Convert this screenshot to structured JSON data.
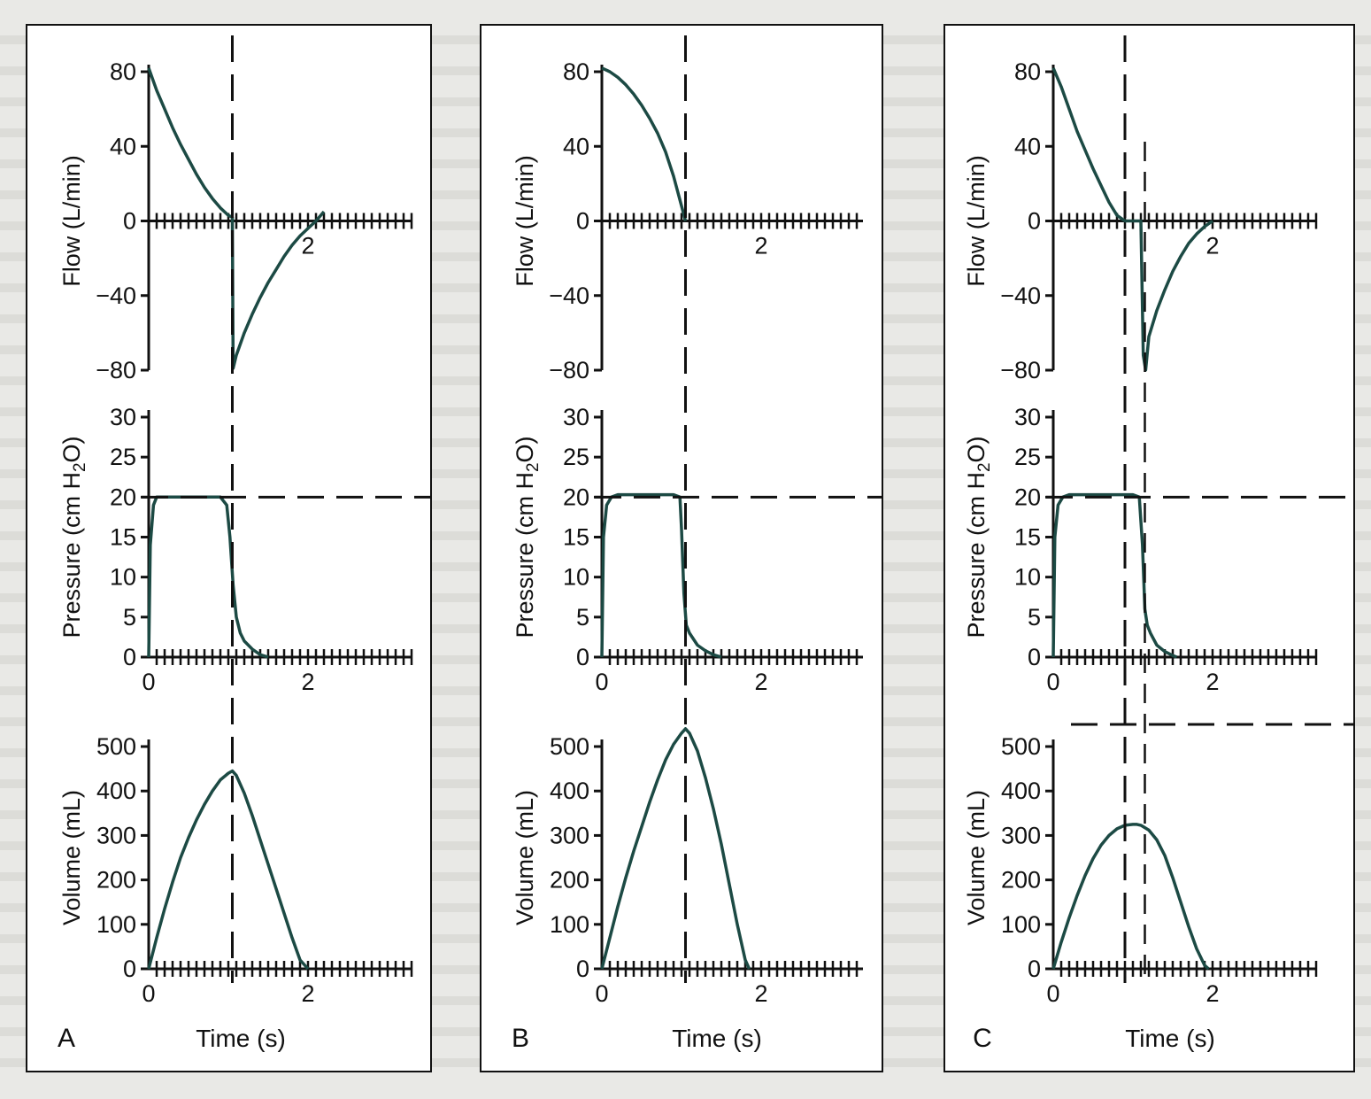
{
  "colors": {
    "ink": "#111111",
    "curve": "#1c4a44",
    "background": "#e9e9e6",
    "panel": "#ffffff"
  },
  "labels": {
    "flow": "Flow (L/min)",
    "pressure_prefix": "Pressure (cm H",
    "pressure_sub": "2",
    "pressure_suffix": "O)",
    "volume": "Volume (mL)",
    "time": "Time (s)"
  },
  "chart_data": [
    {
      "type": "line",
      "panel": "A",
      "xlabel": "Time (s)",
      "xlim": [
        0,
        3.3
      ],
      "flow": {
        "ylabel": "Flow (L/min)",
        "ylim": [
          -80,
          80
        ],
        "yticks": [
          80,
          40,
          0,
          -40,
          -80
        ],
        "xtick_labels": [
          "2"
        ],
        "x": [
          0,
          0.1,
          0.2,
          0.3,
          0.4,
          0.5,
          0.6,
          0.7,
          0.8,
          0.9,
          1.0,
          1.05,
          1.06,
          1.1,
          1.2,
          1.3,
          1.4,
          1.5,
          1.6,
          1.7,
          1.8,
          1.9,
          2.0,
          2.1,
          2.2
        ],
        "y": [
          82,
          70,
          60,
          50,
          41,
          33,
          25,
          18,
          12,
          7,
          3,
          2,
          -79,
          -72,
          -60,
          -50,
          -41,
          -33,
          -26,
          -19,
          -13,
          -8,
          -4,
          0,
          5
        ]
      },
      "pressure": {
        "ylabel": "Pressure (cm H2O)",
        "ylim": [
          0,
          30
        ],
        "yticks": [
          0,
          5,
          10,
          15,
          20,
          25,
          30
        ],
        "xtick_labels": [
          "0",
          "2"
        ],
        "dashed_level": 20,
        "x": [
          0,
          0.02,
          0.06,
          0.1,
          0.2,
          0.9,
          0.98,
          1.02,
          1.06,
          1.1,
          1.15,
          1.2,
          1.3,
          1.4,
          1.5
        ],
        "y": [
          0,
          14,
          19,
          20,
          20,
          20,
          19,
          15,
          9,
          5,
          3,
          2,
          1,
          0.3,
          0
        ]
      },
      "volume": {
        "ylabel": "Volume (mL)",
        "ylim": [
          0,
          500
        ],
        "yticks": [
          0,
          100,
          200,
          300,
          400,
          500
        ],
        "xtick_labels": [
          "0",
          "2"
        ],
        "x": [
          0,
          0.1,
          0.2,
          0.3,
          0.4,
          0.5,
          0.6,
          0.7,
          0.8,
          0.9,
          1.0,
          1.05,
          1.1,
          1.2,
          1.3,
          1.4,
          1.5,
          1.6,
          1.7,
          1.8,
          1.9,
          2.0
        ],
        "y": [
          0,
          70,
          135,
          195,
          250,
          295,
          335,
          370,
          400,
          425,
          440,
          445,
          435,
          395,
          345,
          290,
          235,
          180,
          125,
          70,
          20,
          0
        ]
      },
      "dashed_time": 1.05
    },
    {
      "type": "line",
      "panel": "B",
      "xlabel": "Time (s)",
      "xlim": [
        0,
        3.3
      ],
      "flow": {
        "ylabel": "Flow (L/min)",
        "ylim": [
          -80,
          80
        ],
        "yticks": [
          80,
          40,
          0,
          -40,
          -80
        ],
        "xtick_labels": [
          "2"
        ],
        "x": [
          0,
          0.1,
          0.2,
          0.3,
          0.4,
          0.5,
          0.6,
          0.7,
          0.8,
          0.9,
          1.0,
          1.05
        ],
        "y": [
          82,
          80,
          77,
          73,
          68,
          62,
          55,
          47,
          37,
          24,
          8,
          0
        ]
      },
      "pressure": {
        "ylabel": "Pressure (cm H2O)",
        "ylim": [
          0,
          30
        ],
        "yticks": [
          0,
          5,
          10,
          15,
          20,
          25,
          30
        ],
        "xtick_labels": [
          "0",
          "2"
        ],
        "dashed_level": 20,
        "x": [
          0,
          0.02,
          0.06,
          0.12,
          0.2,
          0.9,
          0.98,
          1.0,
          1.03,
          1.06,
          1.1,
          1.2,
          1.3,
          1.4,
          1.5
        ],
        "y": [
          0,
          15,
          19,
          20,
          20.3,
          20.3,
          20,
          16,
          8,
          4,
          3,
          1.5,
          0.8,
          0.3,
          0
        ]
      },
      "volume": {
        "ylabel": "Volume (mL)",
        "ylim": [
          0,
          500
        ],
        "yticks": [
          0,
          100,
          200,
          300,
          400,
          500
        ],
        "xtick_labels": [
          "0",
          "2"
        ],
        "x": [
          0,
          0.1,
          0.2,
          0.3,
          0.4,
          0.5,
          0.6,
          0.7,
          0.8,
          0.9,
          1.0,
          1.05,
          1.1,
          1.2,
          1.3,
          1.4,
          1.5,
          1.6,
          1.7,
          1.8,
          1.85
        ],
        "y": [
          0,
          70,
          140,
          205,
          265,
          320,
          375,
          425,
          470,
          505,
          530,
          540,
          530,
          490,
          430,
          360,
          280,
          190,
          100,
          20,
          0
        ]
      },
      "dashed_time": 1.05
    },
    {
      "type": "line",
      "panel": "C",
      "xlabel": "Time (s)",
      "xlim": [
        0,
        3.3
      ],
      "flow": {
        "ylabel": "Flow (L/min)",
        "ylim": [
          -80,
          80
        ],
        "yticks": [
          80,
          40,
          0,
          -40,
          -80
        ],
        "xtick_labels": [
          "2"
        ],
        "x": [
          0,
          0.1,
          0.2,
          0.3,
          0.4,
          0.5,
          0.6,
          0.7,
          0.8,
          0.9,
          1.0,
          1.05,
          1.1,
          1.13,
          1.16,
          1.2,
          1.3,
          1.4,
          1.5,
          1.6,
          1.7,
          1.8,
          1.9,
          2.0
        ],
        "y": [
          82,
          72,
          60,
          48,
          38,
          28,
          19,
          10,
          3,
          0,
          0,
          0,
          0,
          -72,
          -80,
          -62,
          -48,
          -37,
          -27,
          -19,
          -12,
          -7,
          -3,
          0
        ]
      },
      "pressure": {
        "ylabel": "Pressure (cm H2O)",
        "ylim": [
          0,
          30
        ],
        "yticks": [
          0,
          5,
          10,
          15,
          20,
          25,
          30
        ],
        "xtick_labels": [
          "0",
          "2"
        ],
        "dashed_level": 20,
        "x": [
          0,
          0.02,
          0.06,
          0.12,
          0.2,
          1.0,
          1.08,
          1.12,
          1.15,
          1.18,
          1.22,
          1.3,
          1.4,
          1.5,
          1.55
        ],
        "y": [
          0,
          15,
          19,
          20,
          20.3,
          20.3,
          20,
          14,
          6,
          4,
          3,
          1.5,
          0.7,
          0.2,
          0
        ]
      },
      "volume": {
        "ylabel": "Volume (mL)",
        "ylim": [
          0,
          500
        ],
        "yticks": [
          0,
          100,
          200,
          300,
          400,
          500
        ],
        "xtick_labels": [
          "0",
          "2"
        ],
        "x": [
          0,
          0.1,
          0.2,
          0.3,
          0.4,
          0.5,
          0.6,
          0.7,
          0.8,
          0.9,
          1.0,
          1.05,
          1.1,
          1.2,
          1.3,
          1.4,
          1.5,
          1.6,
          1.7,
          1.8,
          1.9,
          1.95
        ],
        "y": [
          0,
          60,
          115,
          165,
          210,
          248,
          278,
          300,
          315,
          323,
          325,
          325,
          323,
          312,
          290,
          255,
          205,
          150,
          95,
          45,
          8,
          0
        ]
      },
      "dashed_time": 0.9,
      "dashed_time_2": 1.15
    }
  ]
}
